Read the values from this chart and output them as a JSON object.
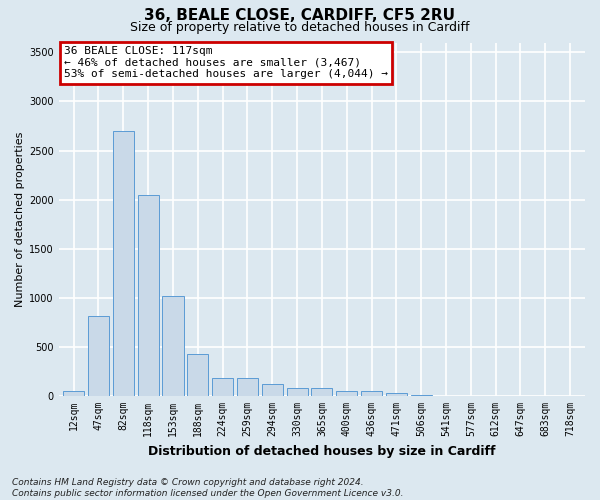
{
  "title_line1": "36, BEALE CLOSE, CARDIFF, CF5 2RU",
  "title_line2": "Size of property relative to detached houses in Cardiff",
  "xlabel": "Distribution of detached houses by size in Cardiff",
  "ylabel": "Number of detached properties",
  "categories": [
    "12sqm",
    "47sqm",
    "82sqm",
    "118sqm",
    "153sqm",
    "188sqm",
    "224sqm",
    "259sqm",
    "294sqm",
    "330sqm",
    "365sqm",
    "400sqm",
    "436sqm",
    "471sqm",
    "506sqm",
    "541sqm",
    "577sqm",
    "612sqm",
    "647sqm",
    "683sqm",
    "718sqm"
  ],
  "values": [
    50,
    820,
    2700,
    2050,
    1020,
    430,
    185,
    185,
    120,
    80,
    80,
    55,
    55,
    30,
    10,
    5,
    0,
    0,
    0,
    0,
    0
  ],
  "bar_color": "#c9d9e8",
  "bar_edge_color": "#5b9bd5",
  "annotation_text": "36 BEALE CLOSE: 117sqm\n← 46% of detached houses are smaller (3,467)\n53% of semi-detached houses are larger (4,044) →",
  "annotation_box_facecolor": "#ffffff",
  "annotation_box_edgecolor": "#cc0000",
  "ylim": [
    0,
    3600
  ],
  "yticks": [
    0,
    500,
    1000,
    1500,
    2000,
    2500,
    3000,
    3500
  ],
  "bg_color": "#dce8f0",
  "plot_bg_color": "#dce8f0",
  "grid_color": "#ffffff",
  "title1_fontsize": 11,
  "title2_fontsize": 9,
  "xlabel_fontsize": 9,
  "ylabel_fontsize": 8,
  "tick_fontsize": 7,
  "annotation_fontsize": 8,
  "footnote_fontsize": 6.5,
  "footnote": "Contains HM Land Registry data © Crown copyright and database right 2024.\nContains public sector information licensed under the Open Government Licence v3.0."
}
